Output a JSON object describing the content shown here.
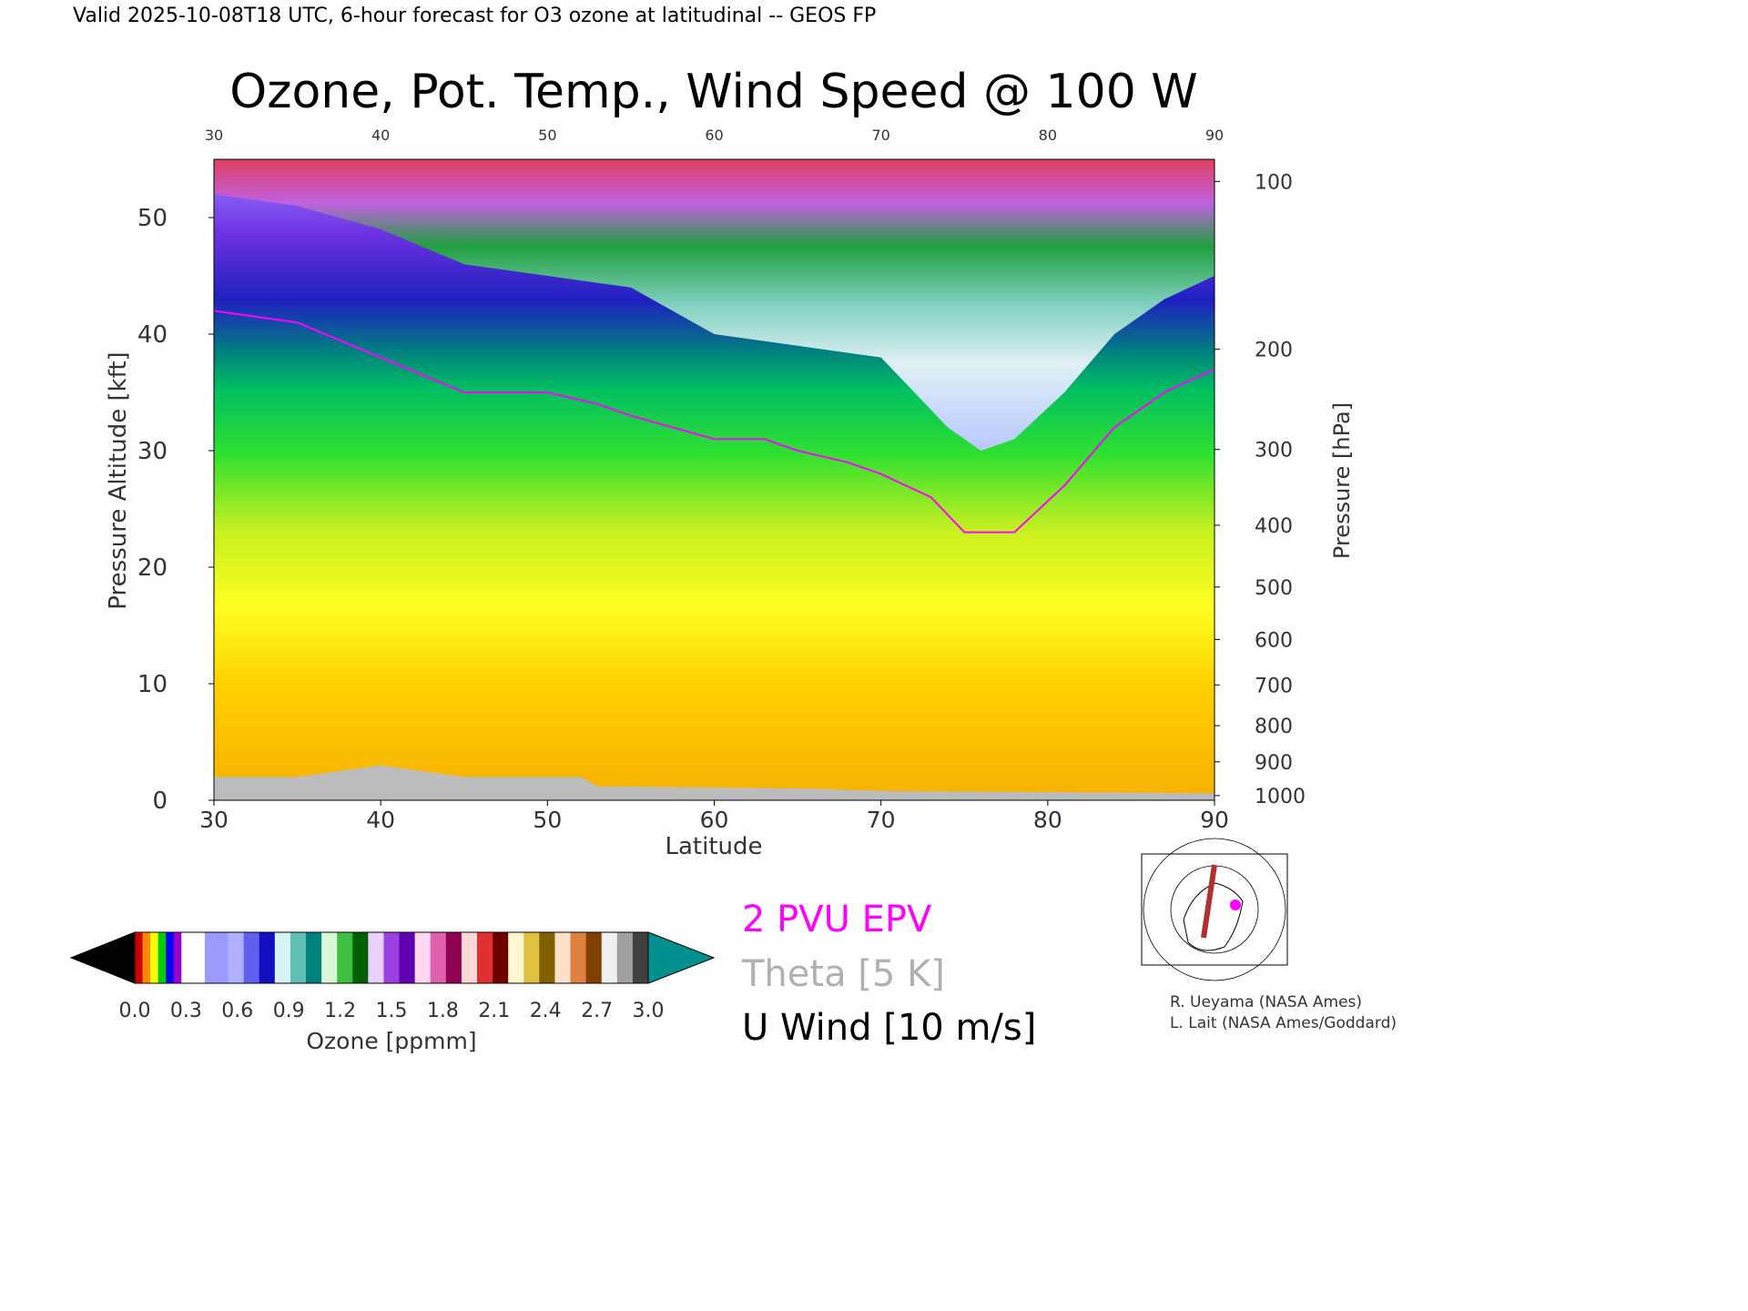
{
  "header": {
    "valid_line": "Valid 2025-10-08T18 UTC, 6-hour forecast for O3 ozone at latitudinal -- GEOS FP"
  },
  "chart_data": {
    "type": "heatmap",
    "title": "Ozone, Pot. Temp., Wind Speed @ 100 W",
    "xlabel": "Latitude",
    "ylabel": "Pressure Altitude [kft]",
    "y2label": "Pressure [hPa]",
    "xlim": [
      30,
      90
    ],
    "ylim": [
      0,
      55
    ],
    "x_ticks": [
      "30",
      "40",
      "50",
      "60",
      "70",
      "80",
      "90"
    ],
    "top_x_ticks": [
      "30",
      "40",
      "50",
      "60",
      "70",
      "80",
      "90"
    ],
    "y_ticks": [
      "0",
      "10",
      "20",
      "30",
      "40",
      "50"
    ],
    "pressure_ticks": [
      {
        "label": "100",
        "kft": 53.1
      },
      {
        "label": "200",
        "kft": 38.7
      },
      {
        "label": "300",
        "kft": 30.1
      },
      {
        "label": "400",
        "kft": 23.6
      },
      {
        "label": "500",
        "kft": 18.3
      },
      {
        "label": "600",
        "kft": 13.8
      },
      {
        "label": "700",
        "kft": 9.9
      },
      {
        "label": "800",
        "kft": 6.4
      },
      {
        "label": "900",
        "kft": 3.3
      },
      {
        "label": "1000",
        "kft": 0.4
      }
    ],
    "tropopause_kft": [
      [
        30,
        42
      ],
      [
        35,
        41
      ],
      [
        40,
        38
      ],
      [
        45,
        35
      ],
      [
        50,
        35
      ],
      [
        53,
        34
      ],
      [
        55,
        33
      ],
      [
        60,
        31
      ],
      [
        63,
        31
      ],
      [
        65,
        30
      ],
      [
        68,
        29
      ],
      [
        70,
        28
      ],
      [
        73,
        26
      ],
      [
        75,
        23
      ],
      [
        78,
        23
      ],
      [
        81,
        27
      ],
      [
        84,
        32
      ],
      [
        87,
        35
      ],
      [
        90,
        37
      ]
    ],
    "ozone_top_kft": [
      [
        30,
        52
      ],
      [
        35,
        51
      ],
      [
        40,
        49
      ],
      [
        45,
        46
      ],
      [
        50,
        45
      ],
      [
        55,
        44
      ],
      [
        60,
        40
      ],
      [
        65,
        39
      ],
      [
        70,
        38
      ],
      [
        74,
        32
      ],
      [
        76,
        30
      ],
      [
        78,
        31
      ],
      [
        81,
        35
      ],
      [
        84,
        40
      ],
      [
        87,
        43
      ],
      [
        90,
        45
      ]
    ],
    "colorbar": {
      "label": "Ozone [ppmm]",
      "min": 0.0,
      "max": 3.0,
      "tick_labels": [
        "0.0",
        "0.3",
        "0.6",
        "0.9",
        "1.2",
        "1.5",
        "1.8",
        "2.1",
        "2.4",
        "2.7",
        "3.0"
      ],
      "segments": [
        [
          "#cc0000",
          "#ff8800",
          "#ffff00",
          "#00cc00",
          "#0000ff",
          "#9900cc"
        ],
        [
          "#ffffff",
          "#9a9aff"
        ],
        [
          "#b0b0ff",
          "#6060f0",
          "#1010c0"
        ],
        [
          "#d8f4f0",
          "#60c0b8",
          "#00807c"
        ],
        [
          "#d8f8d8",
          "#40c040",
          "#006000"
        ],
        [
          "#e8d0ff",
          "#9a40e0",
          "#6000b0"
        ],
        [
          "#ffd8f0",
          "#e060b0",
          "#900050"
        ],
        [
          "#ffd8d8",
          "#e03030",
          "#700000"
        ],
        [
          "#fff8d0",
          "#e0c040",
          "#806000"
        ],
        [
          "#ffe0c8",
          "#e08040",
          "#804000"
        ],
        [
          "#f0f0f0",
          "#a0a0a0",
          "#404040"
        ]
      ],
      "under_color": "#000000",
      "over_color": "#009090"
    }
  },
  "legend": {
    "epv": "2 PVU EPV",
    "theta": "Theta [5 K]",
    "uwind": "U Wind [10 m/s]",
    "epv_color": "#ff00ff",
    "theta_color": "#b0b0b0"
  },
  "credits": {
    "line1": "R. Ueyama (NASA Ames)",
    "line2": "L. Lait (NASA Ames/Goddard)"
  },
  "map_inset": {
    "track_color": "#b03030",
    "marker_color": "#ff00ff"
  }
}
